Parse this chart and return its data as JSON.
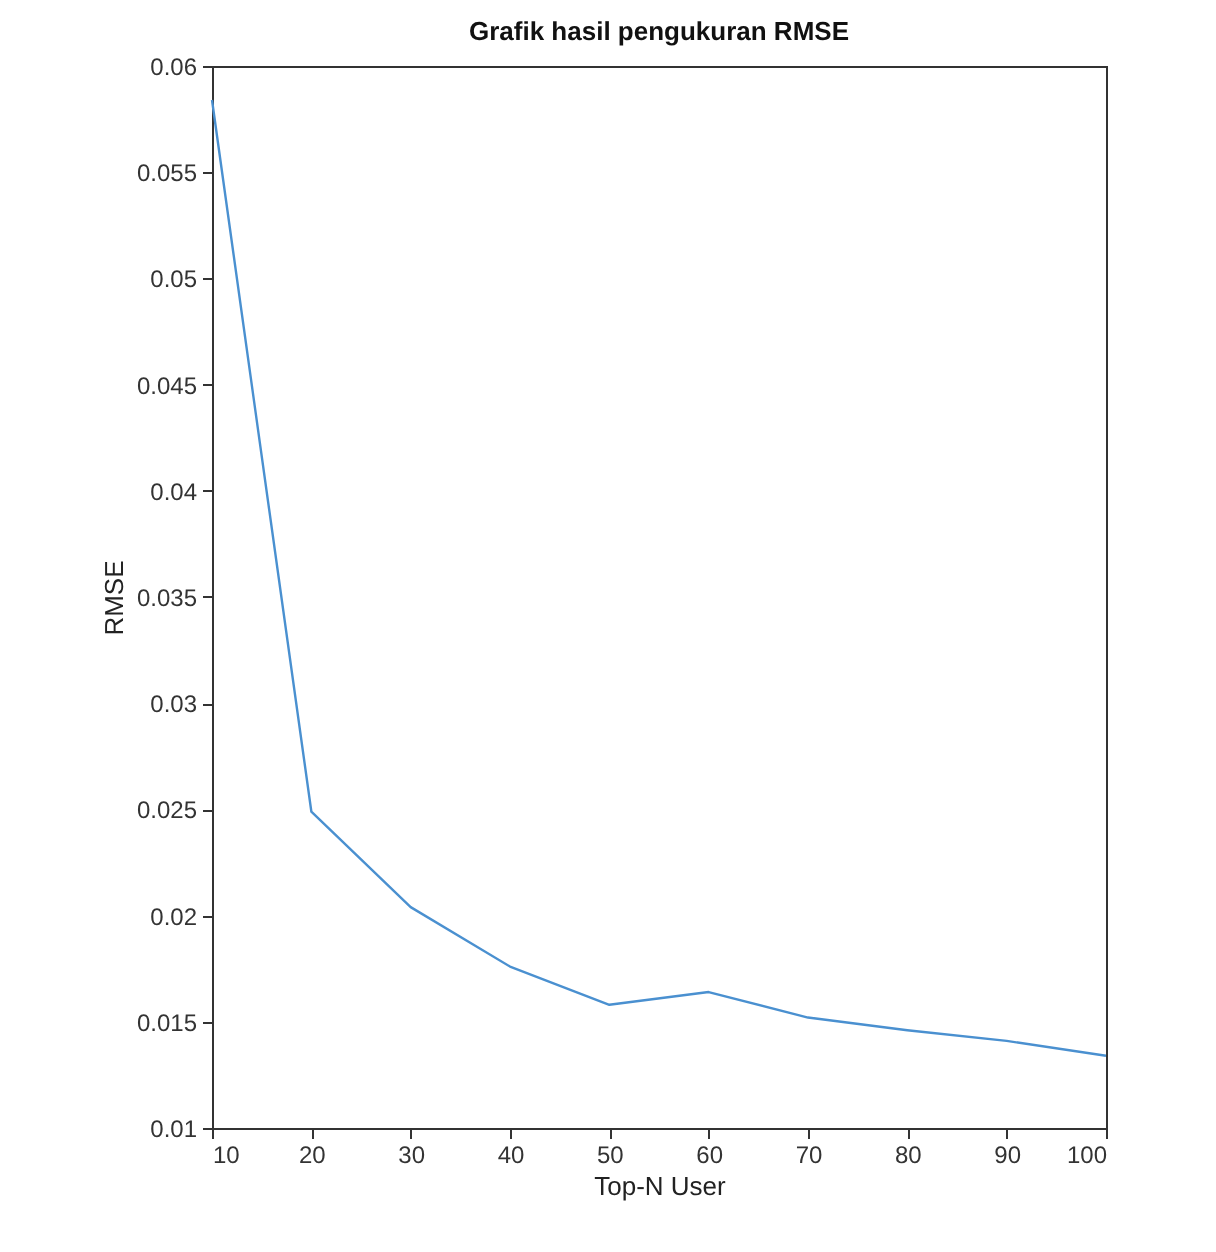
{
  "chart_data": {
    "type": "line",
    "title": "Grafik hasil pengukuran RMSE",
    "xlabel": "Top-N User",
    "ylabel": "RMSE",
    "x": [
      10,
      20,
      30,
      40,
      50,
      60,
      70,
      80,
      90,
      100
    ],
    "series": [
      {
        "color": "#4a90d0",
        "values": [
          0.0584,
          0.0249,
          0.0204,
          0.0176,
          0.0158,
          0.0164,
          0.0152,
          0.0146,
          0.0141,
          0.0134
        ]
      }
    ],
    "xlim": [
      10,
      100
    ],
    "xticks": [
      10,
      20,
      30,
      40,
      50,
      60,
      70,
      80,
      90,
      100
    ],
    "ylim": [
      0.01,
      0.06
    ],
    "yticks": [
      0.01,
      0.015,
      0.02,
      0.025,
      0.03,
      0.035,
      0.04,
      0.045,
      0.05,
      0.055,
      0.06
    ],
    "grid": false,
    "marker": "none",
    "line_style": "solid"
  }
}
